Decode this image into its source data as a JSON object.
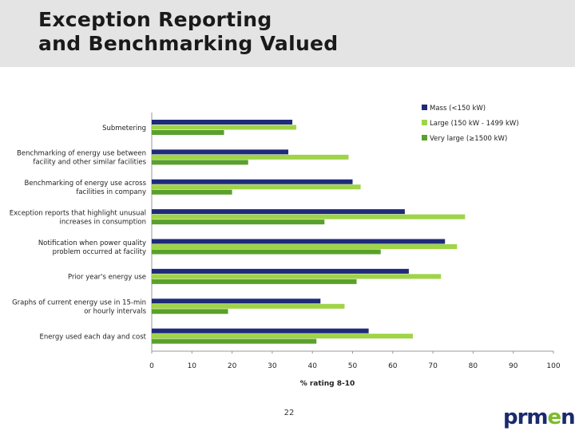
{
  "header": {
    "title_line1": "Exception Reporting",
    "title_line2": "and Benchmarking Valued"
  },
  "footer": {
    "page_number": "22",
    "logo_main": "prm",
    "logo_accent": "e",
    "logo_tail": "n"
  },
  "colors": {
    "mass": "#1f2a7a",
    "large": "#9fd447",
    "very_large": "#5aa02c"
  },
  "chart_data": {
    "type": "bar",
    "orientation": "horizontal",
    "title": "",
    "xlabel": "% rating 8-10",
    "ylabel": "",
    "xlim": [
      0,
      100
    ],
    "xticks": [
      0,
      10,
      20,
      30,
      40,
      50,
      60,
      70,
      80,
      90,
      100
    ],
    "grid": false,
    "legend_position": "top-right",
    "categories": [
      [
        "Submetering"
      ],
      [
        "Benchmarking of energy use between",
        "facility and other similar facilities"
      ],
      [
        "Benchmarking of energy use across",
        "facilities in company"
      ],
      [
        "Exception reports that highlight unusual",
        "increases in consumption"
      ],
      [
        "Notification when power quality",
        "problem occurred at facility"
      ],
      [
        "Prior year's energy use"
      ],
      [
        "Graphs of current energy use in 15-min",
        "or hourly intervals"
      ],
      [
        "Energy used each day and cost"
      ]
    ],
    "series": [
      {
        "name": "Mass (<150 kW)",
        "values": [
          35,
          34,
          50,
          63,
          73,
          64,
          42,
          54
        ]
      },
      {
        "name": "Large (150 kW - 1499 kW)",
        "values": [
          36,
          49,
          52,
          78,
          76,
          72,
          48,
          65
        ]
      },
      {
        "name": "Very large (≥1500 kW)",
        "values": [
          18,
          24,
          20,
          43,
          57,
          51,
          19,
          41
        ]
      }
    ]
  }
}
